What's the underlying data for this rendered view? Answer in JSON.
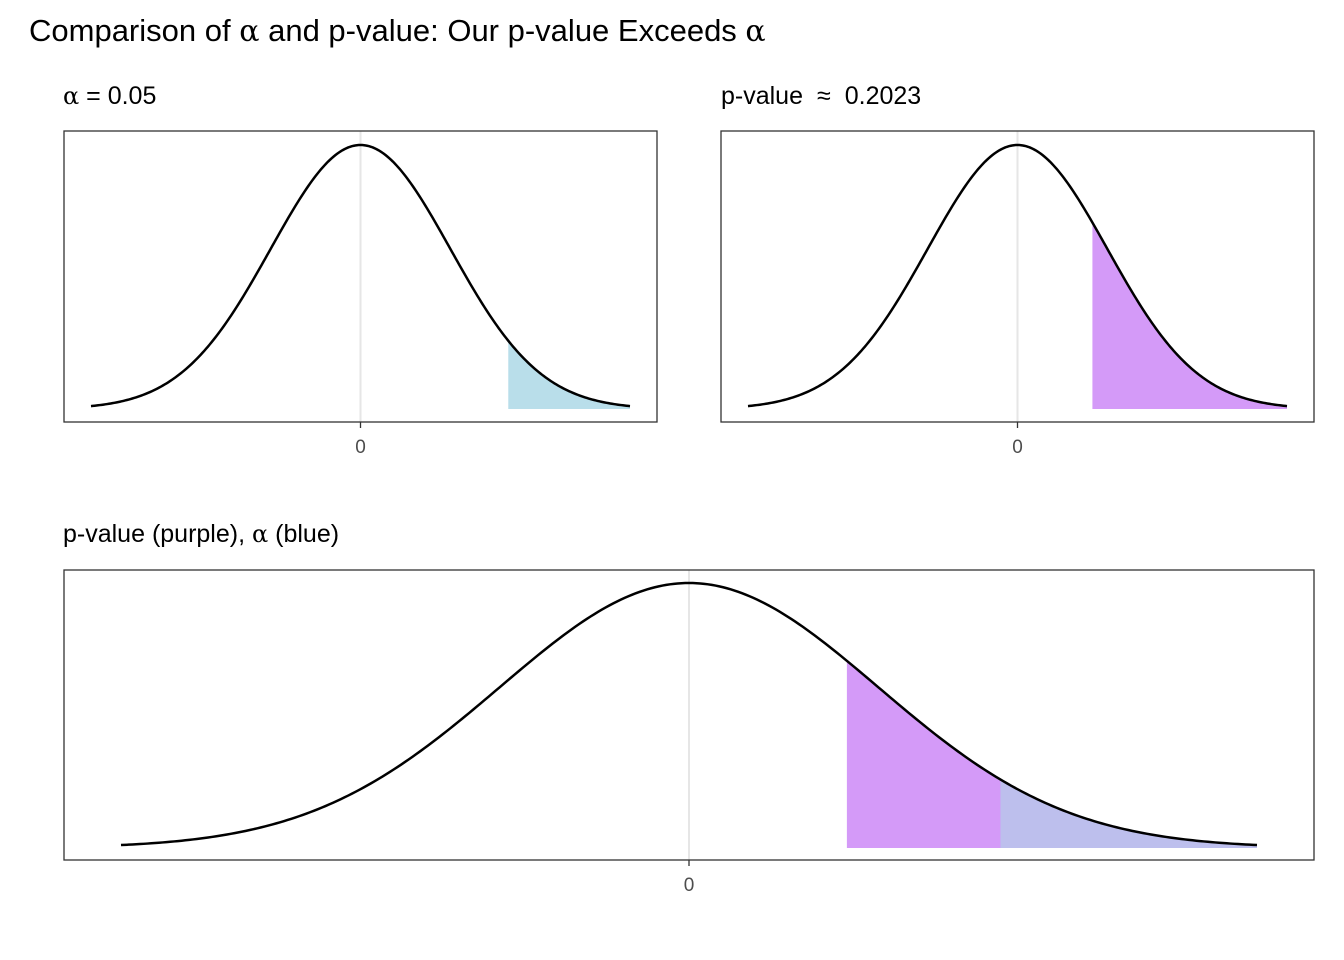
{
  "title": {
    "text_before": "Comparison of ",
    "alpha_symbol": "α",
    "text_middle": " and p-value: Our p-value Exceeds ",
    "alpha_symbol_end": "α"
  },
  "colors": {
    "alpha_fill": "#ADD8E6",
    "pvalue_fill": "#A020F0",
    "overlap_fill": "#9fabea",
    "curve": "#000000",
    "zero_line": "#e6e6e6",
    "panel_border": "#333333"
  },
  "chart_data": [
    {
      "type": "area",
      "title_symbol": "α",
      "title_text": " = 0.05",
      "distribution": "standard normal",
      "x_range": [
        -3,
        3
      ],
      "x_ticks": [
        "0"
      ],
      "grid": "vertical line at 0",
      "shaded_regions": [
        {
          "label": "α",
          "from": 1.645,
          "to": 3,
          "area": 0.05,
          "color": "#ADD8E6"
        }
      ]
    },
    {
      "type": "area",
      "title_text": "p-value",
      "title_approx": "≈",
      "title_value": "0.2023",
      "distribution": "standard normal",
      "x_range": [
        -3,
        3
      ],
      "x_ticks": [
        "0"
      ],
      "grid": "vertical line at 0",
      "shaded_regions": [
        {
          "label": "p-value",
          "from": 0.834,
          "to": 3,
          "area": 0.2023,
          "color": "#A020F0"
        }
      ]
    },
    {
      "type": "area",
      "title_text_before": "p-value (purple), ",
      "title_symbol": "α",
      "title_text_after": " (blue)",
      "distribution": "standard normal",
      "x_range": [
        -3,
        3
      ],
      "x_ticks": [
        "0"
      ],
      "grid": "vertical line at 0",
      "shaded_regions": [
        {
          "label": "p-value",
          "from": 0.834,
          "to": 3,
          "area": 0.2023,
          "color": "#A020F0"
        },
        {
          "label": "α",
          "from": 1.645,
          "to": 3,
          "area": 0.05,
          "color": "#ADD8E6"
        }
      ]
    }
  ]
}
